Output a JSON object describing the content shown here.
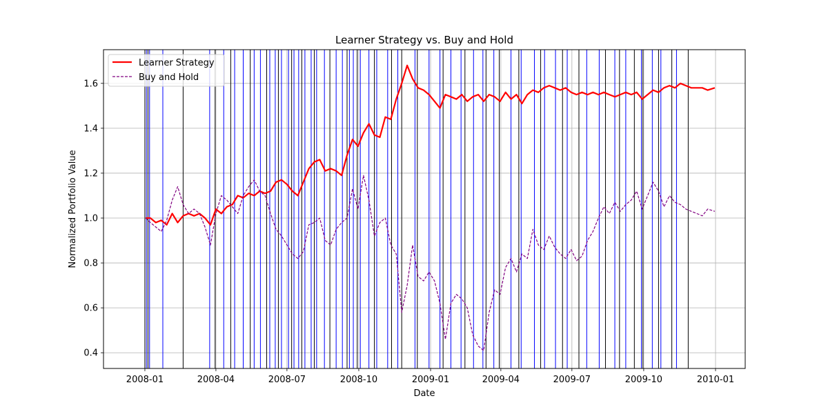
{
  "chart_data": {
    "type": "line",
    "title": "Learner Strategy vs. Buy and Hold",
    "xlabel": "Date",
    "ylabel": "Normalized Portfolio Value",
    "x_range": [
      "2007-11-09",
      "2010-02-08"
    ],
    "ylim": [
      0.33,
      1.75
    ],
    "grid": true,
    "legend_position": "upper-left",
    "x_ticks": [
      "2008-01",
      "2008-04",
      "2008-07",
      "2008-10",
      "2009-01",
      "2009-04",
      "2009-07",
      "2009-10",
      "2010-01"
    ],
    "y_ticks": [
      0.4,
      0.6,
      0.8,
      1.0,
      1.2,
      1.4,
      1.6
    ],
    "y_tick_labels": [
      "0.4",
      "0.6",
      "0.8",
      "1.0",
      "1.2",
      "1.4",
      "1.6"
    ],
    "series": [
      {
        "name": "Learner Strategy",
        "color": "#ff0000",
        "style": "solid",
        "points": [
          [
            "2008-01-02",
            1.0
          ],
          [
            "2008-01-08",
            1.0
          ],
          [
            "2008-01-15",
            0.98
          ],
          [
            "2008-01-22",
            0.99
          ],
          [
            "2008-01-29",
            0.97
          ],
          [
            "2008-02-05",
            1.02
          ],
          [
            "2008-02-12",
            0.98
          ],
          [
            "2008-02-19",
            1.01
          ],
          [
            "2008-02-26",
            1.02
          ],
          [
            "2008-03-04",
            1.01
          ],
          [
            "2008-03-11",
            1.02
          ],
          [
            "2008-03-18",
            1.0
          ],
          [
            "2008-03-25",
            0.97
          ],
          [
            "2008-04-01",
            1.04
          ],
          [
            "2008-04-08",
            1.02
          ],
          [
            "2008-04-15",
            1.05
          ],
          [
            "2008-04-22",
            1.06
          ],
          [
            "2008-04-29",
            1.1
          ],
          [
            "2008-05-06",
            1.09
          ],
          [
            "2008-05-13",
            1.11
          ],
          [
            "2008-05-20",
            1.1
          ],
          [
            "2008-05-27",
            1.12
          ],
          [
            "2008-06-03",
            1.11
          ],
          [
            "2008-06-10",
            1.12
          ],
          [
            "2008-06-17",
            1.16
          ],
          [
            "2008-06-24",
            1.17
          ],
          [
            "2008-07-01",
            1.15
          ],
          [
            "2008-07-08",
            1.12
          ],
          [
            "2008-07-15",
            1.1
          ],
          [
            "2008-07-22",
            1.16
          ],
          [
            "2008-07-29",
            1.22
          ],
          [
            "2008-08-05",
            1.25
          ],
          [
            "2008-08-12",
            1.26
          ],
          [
            "2008-08-19",
            1.21
          ],
          [
            "2008-08-26",
            1.22
          ],
          [
            "2008-09-02",
            1.21
          ],
          [
            "2008-09-09",
            1.19
          ],
          [
            "2008-09-16",
            1.28
          ],
          [
            "2008-09-23",
            1.35
          ],
          [
            "2008-09-30",
            1.32
          ],
          [
            "2008-10-07",
            1.38
          ],
          [
            "2008-10-14",
            1.42
          ],
          [
            "2008-10-21",
            1.37
          ],
          [
            "2008-10-28",
            1.36
          ],
          [
            "2008-11-04",
            1.45
          ],
          [
            "2008-11-11",
            1.44
          ],
          [
            "2008-11-18",
            1.53
          ],
          [
            "2008-11-25",
            1.6
          ],
          [
            "2008-12-02",
            1.68
          ],
          [
            "2008-12-09",
            1.62
          ],
          [
            "2008-12-16",
            1.58
          ],
          [
            "2008-12-23",
            1.57
          ],
          [
            "2008-12-30",
            1.55
          ],
          [
            "2009-01-06",
            1.52
          ],
          [
            "2009-01-13",
            1.49
          ],
          [
            "2009-01-20",
            1.55
          ],
          [
            "2009-01-27",
            1.54
          ],
          [
            "2009-02-03",
            1.53
          ],
          [
            "2009-02-10",
            1.55
          ],
          [
            "2009-02-17",
            1.52
          ],
          [
            "2009-02-24",
            1.54
          ],
          [
            "2009-03-03",
            1.55
          ],
          [
            "2009-03-10",
            1.52
          ],
          [
            "2009-03-17",
            1.55
          ],
          [
            "2009-03-24",
            1.54
          ],
          [
            "2009-03-31",
            1.52
          ],
          [
            "2009-04-07",
            1.56
          ],
          [
            "2009-04-14",
            1.53
          ],
          [
            "2009-04-21",
            1.55
          ],
          [
            "2009-04-28",
            1.51
          ],
          [
            "2009-05-05",
            1.55
          ],
          [
            "2009-05-12",
            1.57
          ],
          [
            "2009-05-19",
            1.56
          ],
          [
            "2009-05-26",
            1.58
          ],
          [
            "2009-06-02",
            1.59
          ],
          [
            "2009-06-09",
            1.58
          ],
          [
            "2009-06-16",
            1.57
          ],
          [
            "2009-06-23",
            1.58
          ],
          [
            "2009-06-30",
            1.56
          ],
          [
            "2009-07-07",
            1.55
          ],
          [
            "2009-07-14",
            1.56
          ],
          [
            "2009-07-21",
            1.55
          ],
          [
            "2009-07-28",
            1.56
          ],
          [
            "2009-08-04",
            1.55
          ],
          [
            "2009-08-11",
            1.56
          ],
          [
            "2009-08-18",
            1.55
          ],
          [
            "2009-08-25",
            1.54
          ],
          [
            "2009-09-01",
            1.55
          ],
          [
            "2009-09-08",
            1.56
          ],
          [
            "2009-09-15",
            1.55
          ],
          [
            "2009-09-22",
            1.56
          ],
          [
            "2009-09-29",
            1.53
          ],
          [
            "2009-10-06",
            1.55
          ],
          [
            "2009-10-13",
            1.57
          ],
          [
            "2009-10-20",
            1.56
          ],
          [
            "2009-10-27",
            1.58
          ],
          [
            "2009-11-03",
            1.59
          ],
          [
            "2009-11-10",
            1.58
          ],
          [
            "2009-11-17",
            1.6
          ],
          [
            "2009-11-24",
            1.59
          ],
          [
            "2009-12-01",
            1.58
          ],
          [
            "2009-12-08",
            1.58
          ],
          [
            "2009-12-15",
            1.58
          ],
          [
            "2009-12-22",
            1.57
          ],
          [
            "2009-12-31",
            1.58
          ]
        ]
      },
      {
        "name": "Buy and Hold",
        "color": "#800080",
        "style": "dashed",
        "points": [
          [
            "2008-01-02",
            1.0
          ],
          [
            "2008-01-08",
            0.98
          ],
          [
            "2008-01-15",
            0.96
          ],
          [
            "2008-01-22",
            0.94
          ],
          [
            "2008-01-29",
            0.99
          ],
          [
            "2008-02-05",
            1.08
          ],
          [
            "2008-02-12",
            1.14
          ],
          [
            "2008-02-19",
            1.06
          ],
          [
            "2008-02-26",
            1.02
          ],
          [
            "2008-03-04",
            1.04
          ],
          [
            "2008-03-11",
            1.02
          ],
          [
            "2008-03-18",
            0.96
          ],
          [
            "2008-03-25",
            0.88
          ],
          [
            "2008-04-01",
            1.02
          ],
          [
            "2008-04-08",
            1.1
          ],
          [
            "2008-04-15",
            1.08
          ],
          [
            "2008-04-22",
            1.05
          ],
          [
            "2008-04-29",
            1.02
          ],
          [
            "2008-05-06",
            1.1
          ],
          [
            "2008-05-13",
            1.14
          ],
          [
            "2008-05-20",
            1.17
          ],
          [
            "2008-05-27",
            1.12
          ],
          [
            "2008-06-03",
            1.1
          ],
          [
            "2008-06-10",
            1.02
          ],
          [
            "2008-06-17",
            0.95
          ],
          [
            "2008-06-24",
            0.92
          ],
          [
            "2008-07-01",
            0.88
          ],
          [
            "2008-07-08",
            0.84
          ],
          [
            "2008-07-15",
            0.82
          ],
          [
            "2008-07-22",
            0.85
          ],
          [
            "2008-07-29",
            0.97
          ],
          [
            "2008-08-05",
            0.98
          ],
          [
            "2008-08-12",
            1.0
          ],
          [
            "2008-08-19",
            0.9
          ],
          [
            "2008-08-26",
            0.88
          ],
          [
            "2008-09-02",
            0.95
          ],
          [
            "2008-09-09",
            0.98
          ],
          [
            "2008-09-16",
            1.0
          ],
          [
            "2008-09-23",
            1.13
          ],
          [
            "2008-09-30",
            1.04
          ],
          [
            "2008-10-07",
            1.19
          ],
          [
            "2008-10-14",
            1.08
          ],
          [
            "2008-10-21",
            0.92
          ],
          [
            "2008-10-28",
            0.98
          ],
          [
            "2008-11-04",
            1.0
          ],
          [
            "2008-11-11",
            0.88
          ],
          [
            "2008-11-18",
            0.84
          ],
          [
            "2008-11-25",
            0.58
          ],
          [
            "2008-12-02",
            0.7
          ],
          [
            "2008-12-09",
            0.88
          ],
          [
            "2008-12-16",
            0.74
          ],
          [
            "2008-12-23",
            0.72
          ],
          [
            "2008-12-30",
            0.76
          ],
          [
            "2009-01-06",
            0.72
          ],
          [
            "2009-01-13",
            0.62
          ],
          [
            "2009-01-20",
            0.46
          ],
          [
            "2009-01-27",
            0.62
          ],
          [
            "2009-02-03",
            0.66
          ],
          [
            "2009-02-10",
            0.64
          ],
          [
            "2009-02-17",
            0.6
          ],
          [
            "2009-02-24",
            0.48
          ],
          [
            "2009-03-03",
            0.43
          ],
          [
            "2009-03-10",
            0.41
          ],
          [
            "2009-03-17",
            0.58
          ],
          [
            "2009-03-24",
            0.68
          ],
          [
            "2009-03-31",
            0.66
          ],
          [
            "2009-04-07",
            0.78
          ],
          [
            "2009-04-14",
            0.82
          ],
          [
            "2009-04-21",
            0.76
          ],
          [
            "2009-04-28",
            0.84
          ],
          [
            "2009-05-05",
            0.82
          ],
          [
            "2009-05-12",
            0.95
          ],
          [
            "2009-05-19",
            0.88
          ],
          [
            "2009-05-26",
            0.86
          ],
          [
            "2009-06-02",
            0.92
          ],
          [
            "2009-06-09",
            0.87
          ],
          [
            "2009-06-16",
            0.84
          ],
          [
            "2009-06-23",
            0.82
          ],
          [
            "2009-06-30",
            0.86
          ],
          [
            "2009-07-07",
            0.81
          ],
          [
            "2009-07-14",
            0.83
          ],
          [
            "2009-07-21",
            0.9
          ],
          [
            "2009-07-28",
            0.94
          ],
          [
            "2009-08-04",
            1.0
          ],
          [
            "2009-08-11",
            1.05
          ],
          [
            "2009-08-18",
            1.02
          ],
          [
            "2009-08-25",
            1.07
          ],
          [
            "2009-09-01",
            1.03
          ],
          [
            "2009-09-08",
            1.06
          ],
          [
            "2009-09-15",
            1.08
          ],
          [
            "2009-09-22",
            1.12
          ],
          [
            "2009-09-29",
            1.04
          ],
          [
            "2009-10-06",
            1.1
          ],
          [
            "2009-10-13",
            1.16
          ],
          [
            "2009-10-20",
            1.12
          ],
          [
            "2009-10-27",
            1.05
          ],
          [
            "2009-11-03",
            1.1
          ],
          [
            "2009-11-10",
            1.07
          ],
          [
            "2009-11-17",
            1.06
          ],
          [
            "2009-11-24",
            1.04
          ],
          [
            "2009-12-01",
            1.03
          ],
          [
            "2009-12-08",
            1.02
          ],
          [
            "2009-12-15",
            1.01
          ],
          [
            "2009-12-22",
            1.04
          ],
          [
            "2009-12-31",
            1.03
          ]
        ]
      }
    ],
    "vertical_markers": {
      "blue": [
        "2008-01-03",
        "2008-01-07",
        "2008-01-24",
        "2008-03-24",
        "2008-04-11",
        "2008-04-25",
        "2008-05-06",
        "2008-05-20",
        "2008-05-28",
        "2008-06-09",
        "2008-06-16",
        "2008-06-24",
        "2008-07-03",
        "2008-07-10",
        "2008-07-16",
        "2008-07-24",
        "2008-08-01",
        "2008-08-08",
        "2008-08-18",
        "2008-09-02",
        "2008-09-10",
        "2008-09-19",
        "2008-09-24",
        "2008-10-03",
        "2008-10-14",
        "2008-10-24",
        "2008-11-07",
        "2008-11-20",
        "2008-12-12",
        "2008-12-30",
        "2009-01-13",
        "2009-01-27",
        "2009-02-09",
        "2009-02-25",
        "2009-03-09",
        "2009-03-23",
        "2009-04-14",
        "2009-04-27",
        "2009-05-14",
        "2009-05-27",
        "2009-06-10",
        "2009-06-25",
        "2009-07-20",
        "2009-08-05",
        "2009-08-25",
        "2009-09-08",
        "2009-09-28",
        "2009-10-12",
        "2009-10-23",
        "2009-11-12"
      ],
      "black": [
        "2008-01-01",
        "2008-01-05",
        "2008-02-19",
        "2008-03-31",
        "2008-04-20",
        "2008-05-15",
        "2008-06-05",
        "2008-06-20",
        "2008-07-07",
        "2008-07-20",
        "2008-08-05",
        "2008-08-25",
        "2008-09-16",
        "2008-09-29",
        "2008-10-21",
        "2008-11-12",
        "2008-11-25",
        "2008-12-15",
        "2009-01-17",
        "2009-02-14",
        "2009-03-13",
        "2009-03-30",
        "2009-04-24",
        "2009-05-22",
        "2009-06-19",
        "2009-07-10",
        "2009-08-13",
        "2009-08-31",
        "2009-09-19",
        "2009-09-30",
        "2009-10-20",
        "2009-11-06",
        "2009-11-27"
      ]
    }
  }
}
